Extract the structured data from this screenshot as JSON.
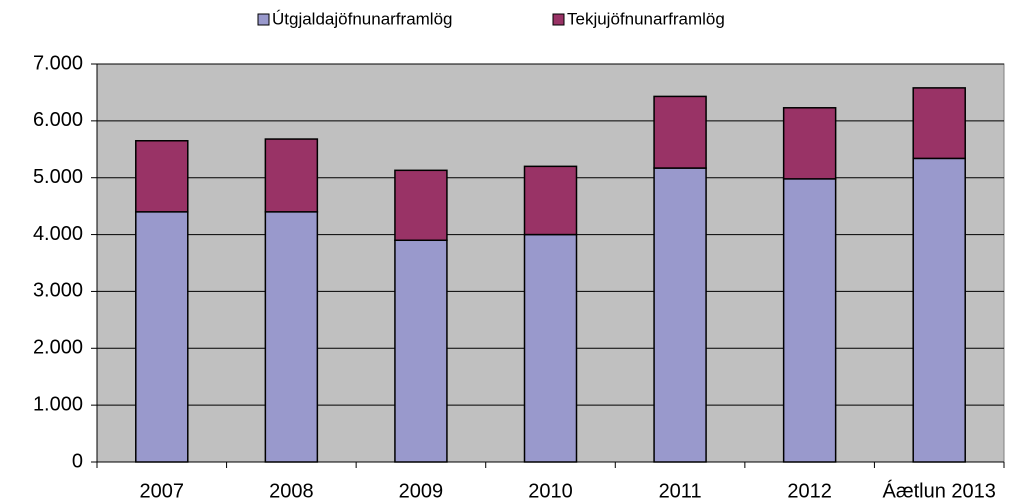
{
  "chart_data": {
    "type": "stacked_bar",
    "categories": [
      "2007",
      "2008",
      "2009",
      "2010",
      "2011",
      "2012",
      "Áætlun 2013"
    ],
    "series": [
      {
        "name": "Útgjaldajöfnunarframlög",
        "color": "#9999cc",
        "values": [
          4400,
          4400,
          3900,
          4000,
          5170,
          4980,
          5340
        ]
      },
      {
        "name": "Tekjujöfnunarframlög",
        "color": "#993366",
        "values": [
          1250,
          1280,
          1230,
          1200,
          1260,
          1250,
          1240
        ]
      }
    ],
    "ylim": [
      0,
      7000
    ],
    "yticks": [
      0,
      {
        "value": 1000,
        "label": "1.000"
      },
      {
        "value": 2000,
        "label": "2.000"
      },
      {
        "value": 3000,
        "label": "3.000"
      },
      {
        "value": 4000,
        "label": "4.000"
      },
      {
        "value": 5000,
        "label": "5.000"
      },
      {
        "value": 6000,
        "label": "6.000"
      },
      {
        "value": 7000,
        "label": "7.000"
      }
    ],
    "grid": true,
    "legend": "top"
  }
}
